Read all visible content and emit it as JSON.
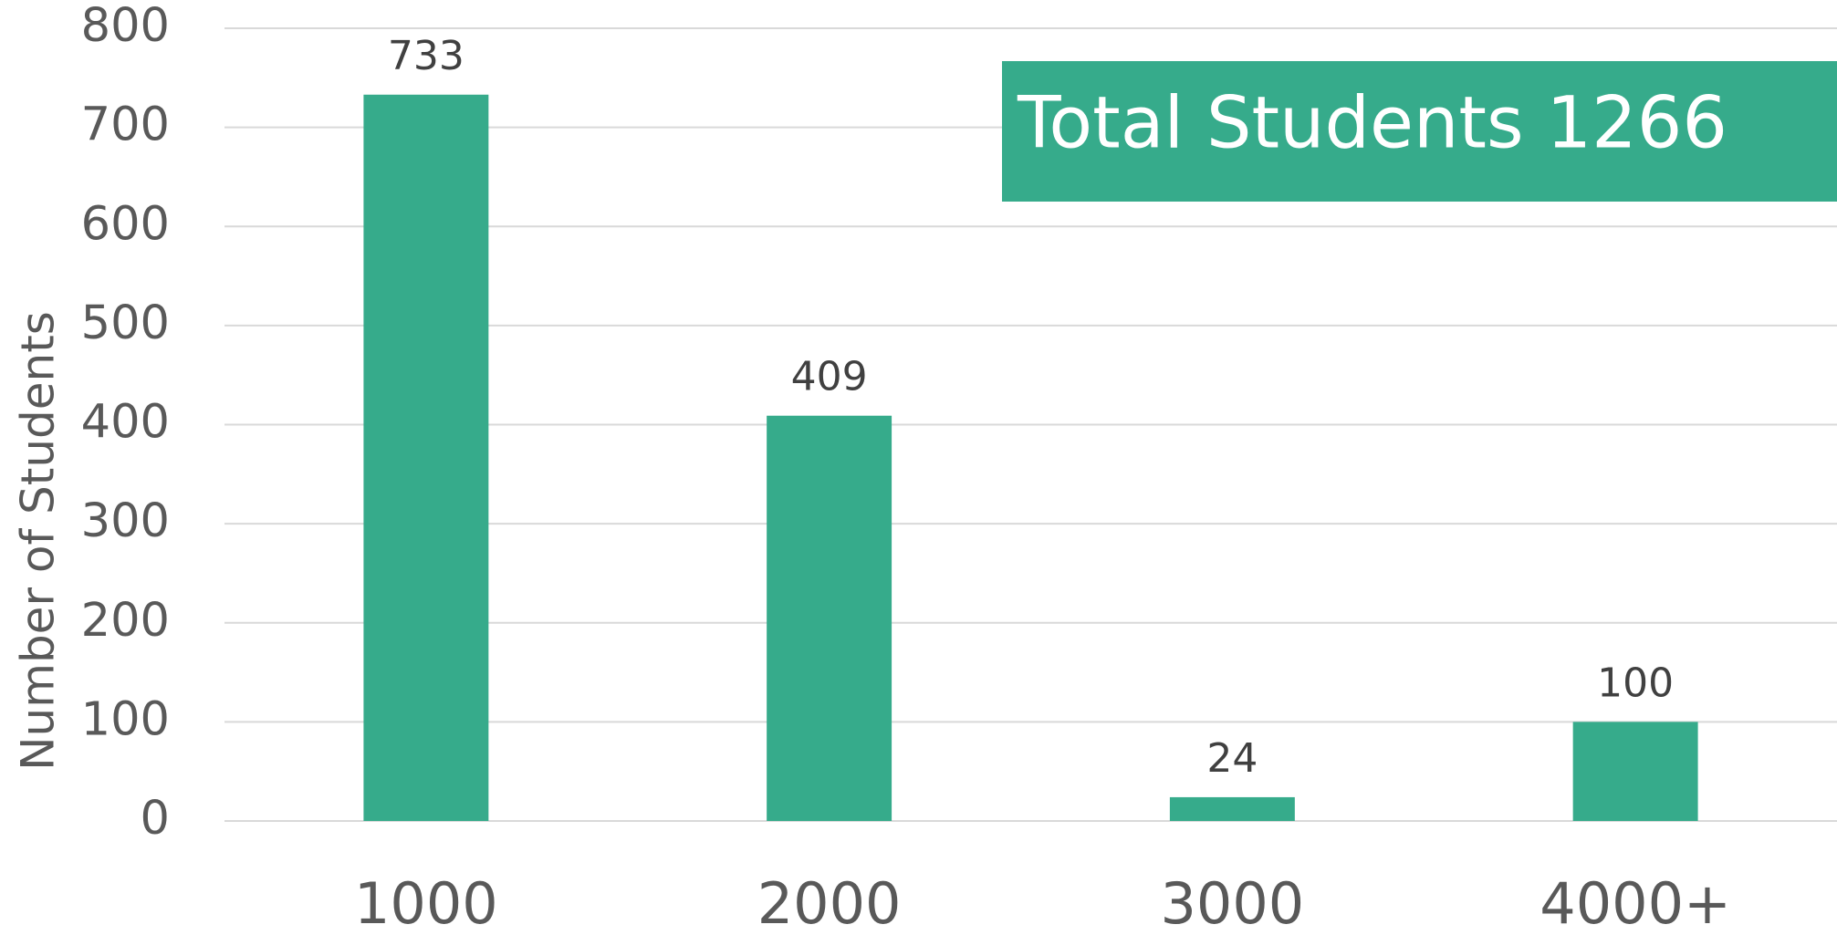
{
  "chart_data": {
    "type": "bar",
    "y_label": "Number of Students",
    "annotation": "Total Students 1266",
    "categories": [
      "1000",
      "2000",
      "3000",
      "4000+"
    ],
    "values": [
      733,
      409,
      24,
      100
    ],
    "color": "#36ab8b",
    "ylim": [
      0,
      800
    ],
    "yticks": [
      0,
      100,
      200,
      300,
      400,
      500,
      600,
      700,
      800
    ],
    "grid": true
  }
}
